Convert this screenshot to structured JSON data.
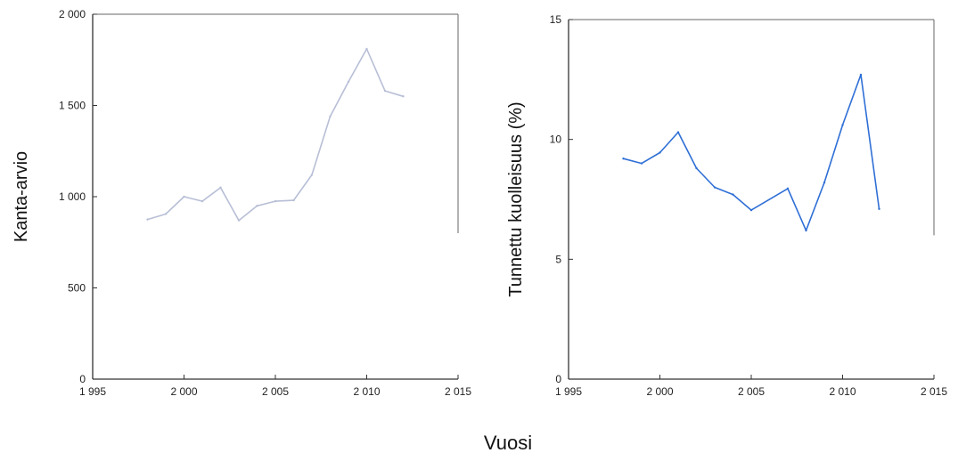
{
  "figure": {
    "xlabel": "Vuosi"
  },
  "chart_data": [
    {
      "type": "line",
      "ylabel": "Kanta-arvio",
      "xlim": [
        1995,
        2015
      ],
      "ylim": [
        0,
        2000
      ],
      "xticks": [
        1995,
        2000,
        2005,
        2010,
        2015
      ],
      "xtick_labels": [
        "1 995",
        "2 000",
        "2 005",
        "2 010",
        "2 015"
      ],
      "yticks": [
        0,
        500,
        1000,
        1500,
        2000
      ],
      "ytick_labels": [
        "0",
        "500",
        "1 000",
        "1 500",
        "2 000"
      ],
      "grid": false,
      "line_color": "#b8bfd6",
      "series": [
        {
          "x": [
            1998,
            1999,
            2000,
            2001,
            2002,
            2003,
            2004,
            2005,
            2006,
            2007,
            2008,
            2009,
            2010,
            2011,
            2012
          ],
          "values": [
            875,
            905,
            1000,
            975,
            1050,
            870,
            950,
            975,
            980,
            1120,
            1440,
            1630,
            1810,
            1580,
            1550
          ]
        }
      ]
    },
    {
      "type": "line",
      "ylabel": "Tunnettu kuolleisuus (%)",
      "xlim": [
        1995,
        2015
      ],
      "ylim": [
        0,
        15
      ],
      "xticks": [
        1995,
        2000,
        2005,
        2010,
        2015
      ],
      "xtick_labels": [
        "1 995",
        "2 000",
        "2 005",
        "2 010",
        "2 015"
      ],
      "yticks": [
        0,
        5,
        10,
        15
      ],
      "ytick_labels": [
        "0",
        "5",
        "10",
        "15"
      ],
      "grid": false,
      "line_color": "#2f6fd6",
      "series": [
        {
          "x": [
            1998,
            1999,
            2000,
            2001,
            2002,
            2003,
            2004,
            2005,
            2007,
            2008,
            2009,
            2010,
            2011,
            2012
          ],
          "values": [
            9.2,
            9.0,
            9.45,
            10.3,
            8.8,
            8.0,
            7.7,
            7.05,
            7.95,
            6.2,
            8.2,
            10.6,
            12.7,
            7.1
          ]
        }
      ]
    }
  ]
}
